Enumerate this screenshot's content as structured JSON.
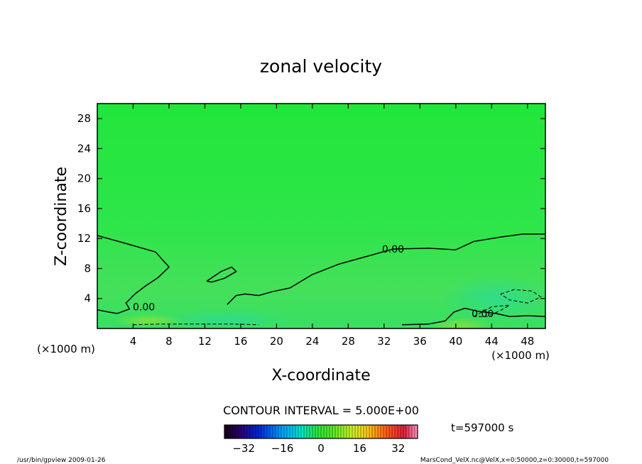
{
  "chart_data": {
    "type": "heatmap",
    "title": "zonal velocity",
    "xlabel": "X-coordinate",
    "ylabel": "Z-coordinate",
    "x_unit": "(×1000 m)",
    "y_unit": "(×1000 m)",
    "xlim": [
      0,
      50
    ],
    "ylim": [
      0,
      30
    ],
    "x_ticks": [
      4,
      8,
      12,
      16,
      20,
      24,
      28,
      32,
      36,
      40,
      44,
      48
    ],
    "y_ticks": [
      4,
      8,
      12,
      16,
      20,
      24,
      28
    ],
    "contour_interval_label": "CONTOUR INTERVAL = 5.000E+00",
    "contour_labels": [
      {
        "text": "0.00",
        "x": 33.0,
        "y": 10.6
      },
      {
        "text": "0.00",
        "x": 43.0,
        "y": 2.0
      },
      {
        "text": "0.00",
        "x": 5.2,
        "y": 2.9
      }
    ],
    "zero_contour": [
      [
        0,
        12.4
      ],
      [
        3,
        11.4
      ],
      [
        6.5,
        10.2
      ],
      [
        8,
        8.2
      ],
      [
        6.8,
        6.8
      ],
      [
        5.3,
        5.6
      ],
      [
        4.2,
        4.6
      ],
      [
        3.2,
        3.4
      ],
      [
        3.6,
        2.6
      ],
      [
        2.2,
        2.0
      ],
      [
        0.8,
        2.3
      ],
      [
        0,
        2.5
      ]
    ],
    "main_contour": [
      [
        14.5,
        3.2
      ],
      [
        15.5,
        4.4
      ],
      [
        16.5,
        4.6
      ],
      [
        18,
        4.4
      ],
      [
        19.5,
        4.9
      ],
      [
        21.5,
        5.4
      ],
      [
        24,
        7.2
      ],
      [
        27,
        8.6
      ],
      [
        30,
        9.6
      ],
      [
        33,
        10.6
      ],
      [
        37,
        10.7
      ],
      [
        40,
        10.5
      ],
      [
        42,
        11.6
      ],
      [
        45,
        12.2
      ],
      [
        47.5,
        12.6
      ],
      [
        50,
        12.6
      ]
    ],
    "closed_contour": [
      [
        12.2,
        6.3
      ],
      [
        13.8,
        7.6
      ],
      [
        15,
        8.2
      ],
      [
        15.5,
        7.6
      ],
      [
        14.2,
        6.7
      ],
      [
        12.8,
        6.2
      ],
      [
        12.2,
        6.3
      ]
    ],
    "near_surface_contour": [
      [
        34,
        0.5
      ],
      [
        37,
        0.6
      ],
      [
        38.8,
        1.0
      ],
      [
        39.8,
        2.2
      ],
      [
        41,
        2.7
      ],
      [
        42.5,
        2.3
      ],
      [
        44.5,
        2.0
      ],
      [
        46,
        1.6
      ],
      [
        48,
        1.7
      ],
      [
        50,
        1.6
      ]
    ],
    "negative_contours": [
      [
        [
          45,
          4.6
        ],
        [
          46.5,
          5.2
        ],
        [
          48.5,
          5.0
        ],
        [
          49.5,
          4.2
        ],
        [
          48,
          3.4
        ],
        [
          46,
          3.8
        ],
        [
          45,
          4.6
        ]
      ],
      [
        [
          42,
          1.6
        ],
        [
          44,
          2.9
        ],
        [
          46,
          3.1
        ],
        [
          45,
          2.4
        ],
        [
          43.5,
          1.6
        ],
        [
          42,
          1.6
        ]
      ],
      [
        [
          4,
          0.5
        ],
        [
          7,
          0.6
        ],
        [
          11,
          0.6
        ],
        [
          15,
          0.6
        ],
        [
          18,
          0.5
        ]
      ]
    ],
    "colorbar": {
      "ticks": [
        -32,
        -16,
        0,
        16,
        32
      ],
      "range": [
        -40,
        40
      ]
    },
    "time_label": "t=597000 s"
  },
  "footer": {
    "left": "/usr/bin/gpview  2009-01-26",
    "right": "MarsCond_VelX.nc@VelX,x=0:50000,z=0:30000,t=597000"
  }
}
